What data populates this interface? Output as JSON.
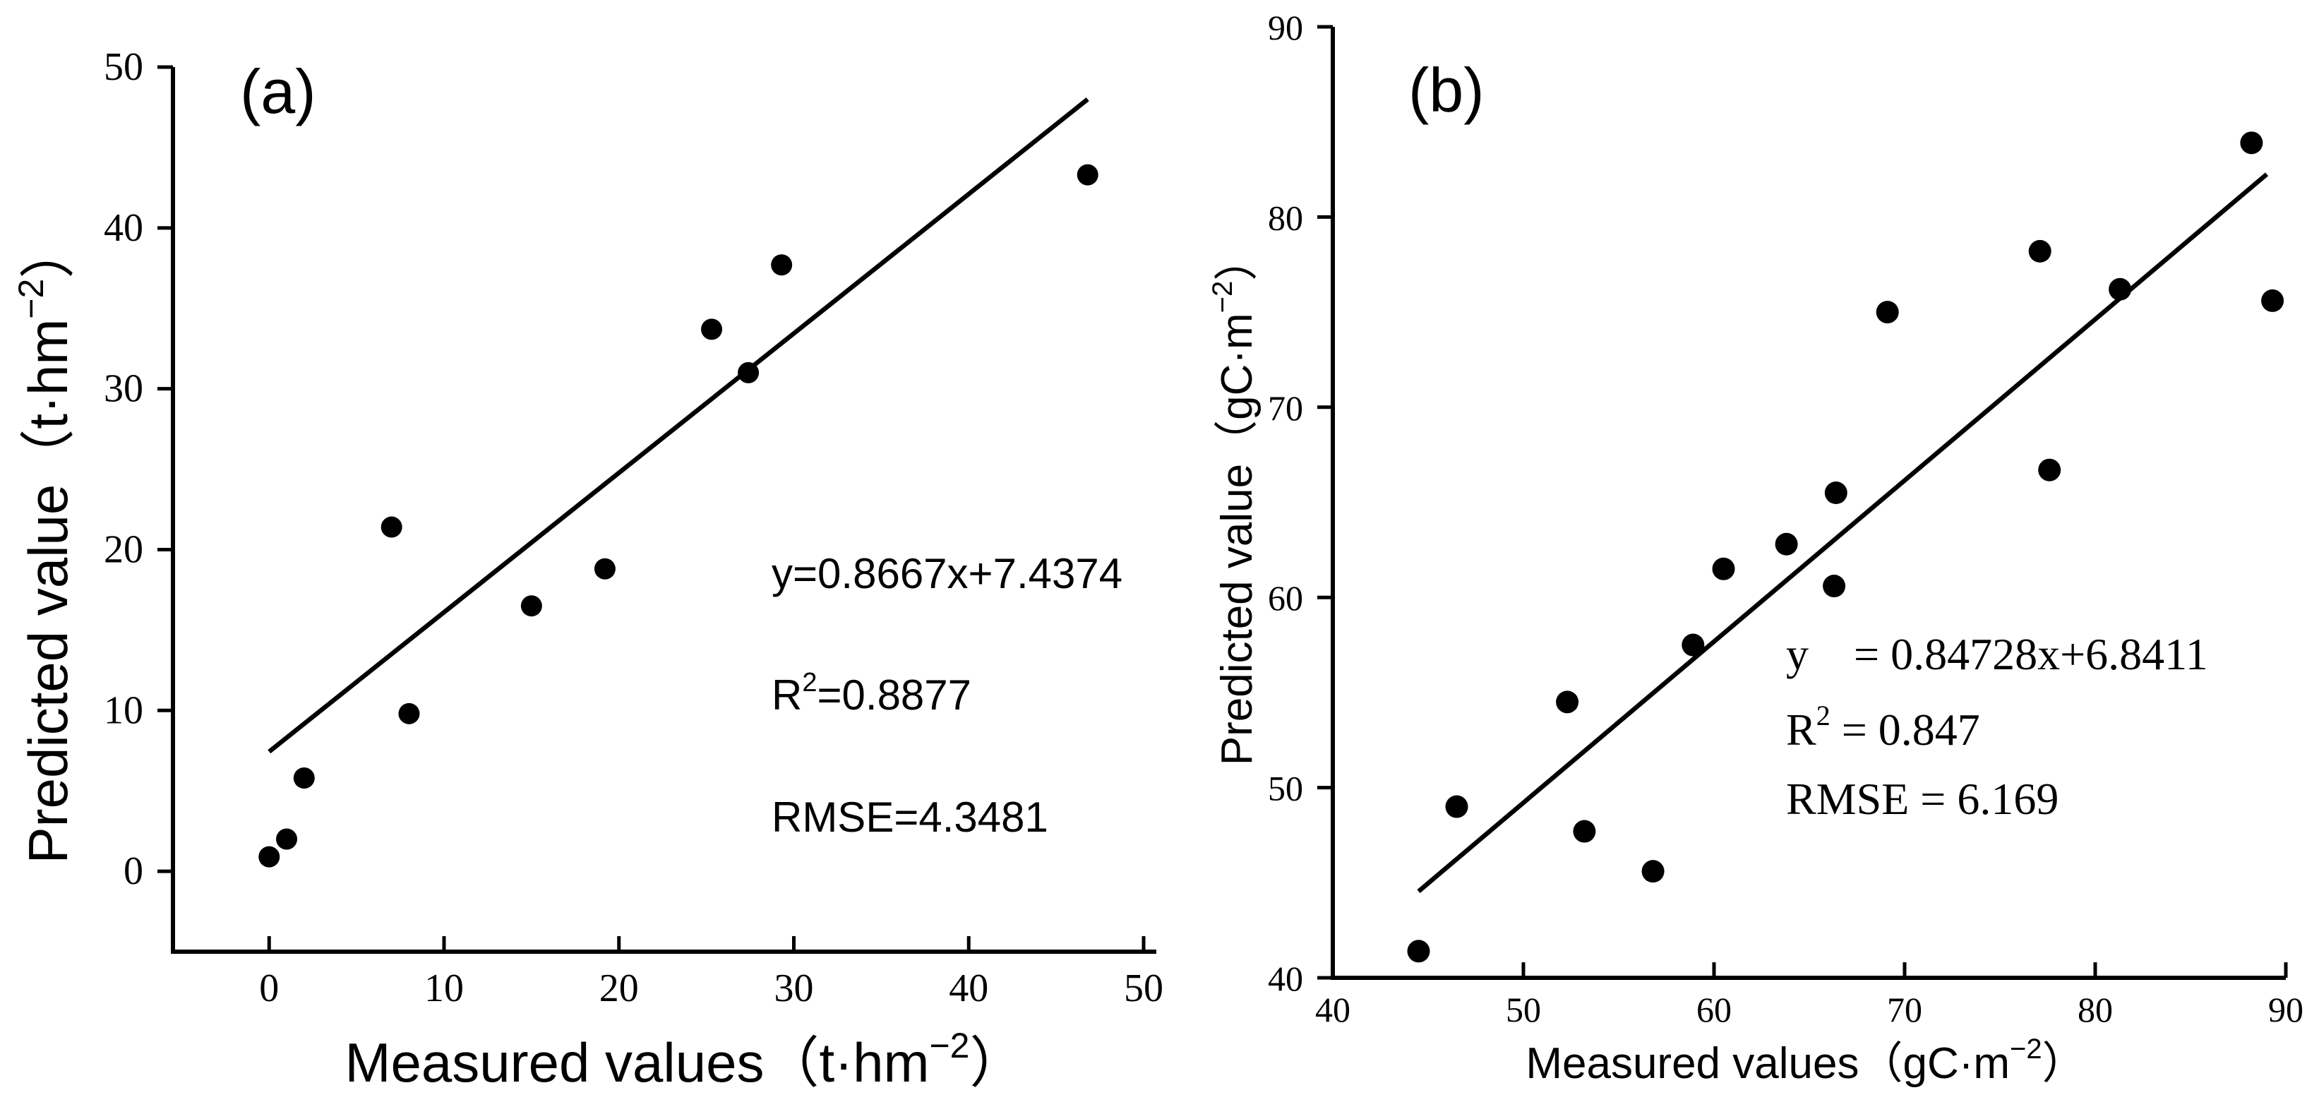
{
  "chart_data": [
    {
      "type": "scatter",
      "panel_label": "(a)",
      "xlabel": "Measured values（t·hm−2）",
      "ylabel": "Predicted value（t·hm−2）",
      "xlabel_parts": {
        "main": "Measured values（t·hm",
        "sup": "−2",
        "close": "）"
      },
      "ylabel_parts": {
        "main": "Predicted value（t·hm",
        "sup": "−2",
        "close": "）"
      },
      "xlim": [
        -5.5,
        50
      ],
      "ylim": [
        -5,
        50
      ],
      "xticks": [
        0,
        10,
        20,
        30,
        40,
        50
      ],
      "yticks": [
        0,
        10,
        20,
        30,
        40,
        50
      ],
      "xtick_labels": [
        "0",
        "10",
        "20",
        "30",
        "40",
        "50"
      ],
      "ytick_labels": [
        "0",
        "10",
        "20",
        "30",
        "40",
        "50"
      ],
      "points": {
        "x": [
          0.0,
          1.0,
          2.0,
          7.0,
          8.0,
          15.0,
          19.2,
          25.3,
          27.4,
          29.3,
          46.8
        ],
        "y": [
          0.9,
          2.0,
          5.8,
          21.4,
          9.8,
          16.5,
          18.8,
          33.7,
          31.0,
          37.7,
          43.3
        ]
      },
      "fit": {
        "slope": 0.8667,
        "intercept": 7.4374,
        "x_range": [
          0,
          46.8
        ]
      },
      "annotations": {
        "equation": "y=0.8667x+7.4374",
        "r2_prefix": "R",
        "r2_sup": "2",
        "r2_value": "=0.8877",
        "rmse": "RMSE=4.3481"
      },
      "grid": false
    },
    {
      "type": "scatter",
      "panel_label": "(b)",
      "xlabel": "Measured values（gC·m−2）",
      "ylabel": "Predicted value（gC·m−2）",
      "xlabel_parts": {
        "main": "Measured values（gC·m",
        "sup": "−2",
        "close": "）"
      },
      "ylabel_parts": {
        "main": "Predicted value（gC·m",
        "sup": "−2",
        "close": "）"
      },
      "xlim": [
        40,
        90
      ],
      "ylim": [
        40,
        90
      ],
      "xticks": [
        40,
        50,
        60,
        70,
        80,
        90
      ],
      "yticks": [
        40,
        50,
        60,
        70,
        80,
        90
      ],
      "xtick_labels": [
        "40",
        "50",
        "60",
        "70",
        "80",
        "90"
      ],
      "ytick_labels": [
        "40",
        "50",
        "60",
        "70",
        "80",
        "90"
      ],
      "points": {
        "x": [
          44.5,
          46.5,
          52.3,
          53.2,
          56.8,
          58.9,
          60.5,
          63.8,
          66.3,
          66.4,
          69.1,
          77.1,
          77.6,
          81.3,
          88.2,
          89.3
        ],
        "y": [
          41.4,
          49.0,
          54.5,
          47.7,
          45.6,
          57.5,
          61.5,
          62.8,
          60.6,
          65.5,
          75.0,
          78.2,
          66.7,
          76.2,
          83.9,
          75.6
        ]
      },
      "fit": {
        "slope": 0.84728,
        "intercept": 6.8411,
        "x_range": [
          44.5,
          89
        ]
      },
      "annotations": {
        "equation": "y　= 0.84728x+6.8411",
        "r2_prefix": "R",
        "r2_sup": "2",
        "r2_value": " = 0.847",
        "rmse": "RMSE = 6.169"
      },
      "grid": false
    }
  ]
}
